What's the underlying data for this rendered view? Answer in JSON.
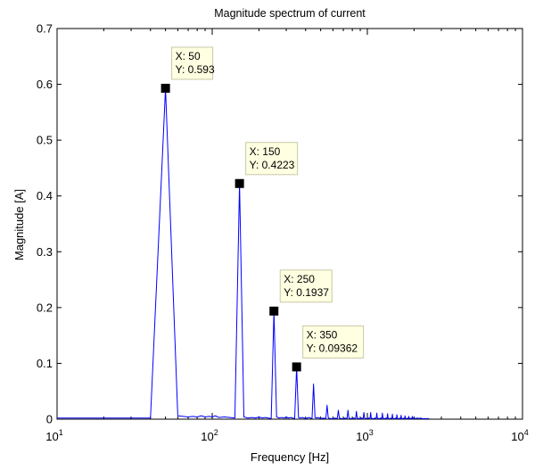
{
  "chart_data": {
    "type": "line",
    "title": "Magnitude spectrum of current",
    "xlabel": "Frequency [Hz]",
    "ylabel": "Magnitude [A]",
    "xscale": "log",
    "xlim": [
      10,
      10000
    ],
    "ylim": [
      0,
      0.7
    ],
    "grid": false,
    "line_color": "#0000ff",
    "x_ticks": [
      {
        "base": "10",
        "exp": "1"
      },
      {
        "base": "10",
        "exp": "2"
      },
      {
        "base": "10",
        "exp": "3"
      },
      {
        "base": "10",
        "exp": "4"
      }
    ],
    "y_ticks": [
      "0",
      "0.1",
      "0.2",
      "0.3",
      "0.4",
      "0.5",
      "0.6",
      "0.7"
    ],
    "series": [
      {
        "x": [
          10,
          40,
          50,
          60,
          70,
          75,
          80,
          85,
          90,
          95,
          100,
          105,
          110,
          120,
          130,
          140,
          150,
          160,
          170,
          180,
          190,
          200,
          210,
          220,
          230,
          240,
          250,
          260,
          270,
          280,
          290,
          300,
          310,
          320,
          330,
          340,
          350,
          360,
          370,
          380,
          390,
          400,
          410,
          420,
          430,
          440,
          450,
          460,
          470,
          480,
          490,
          500,
          520,
          540,
          550,
          560,
          580,
          600,
          620,
          640,
          650,
          660,
          680,
          700,
          720,
          740,
          750,
          760,
          780,
          800,
          820,
          840,
          850,
          860,
          880,
          900,
          920,
          940,
          950,
          960,
          980,
          1000,
          1020,
          1040,
          1050,
          1060,
          1080,
          1100,
          1120,
          1140,
          1150,
          1160,
          1180,
          1200,
          1220,
          1240,
          1250,
          1260,
          1280,
          1300,
          1320,
          1340,
          1350,
          1360,
          1380,
          1400,
          1420,
          1440,
          1450,
          1460,
          1480,
          1500,
          1520,
          1540,
          1550,
          1560,
          1580,
          1600,
          1620,
          1640,
          1650,
          1660,
          1680,
          1700,
          1720,
          1740,
          1750,
          1760,
          1780,
          1800,
          1820,
          1840,
          1850,
          1860,
          1880,
          1900,
          1920,
          1940,
          1950,
          1960,
          1980,
          2000,
          2050,
          2100,
          2150,
          2200,
          2250,
          2300,
          2350,
          2400,
          2450,
          2500
        ],
        "y": [
          0.002,
          0.002,
          0.593,
          0.006,
          0.004,
          0.005,
          0.004,
          0.006,
          0.004,
          0.005,
          0.004,
          0.006,
          0.003,
          0.004,
          0.003,
          0.002,
          0.4223,
          0.004,
          0.002,
          0.003,
          0.002,
          0.004,
          0.002,
          0.003,
          0.002,
          0.001,
          0.1937,
          0.004,
          0.002,
          0.003,
          0.002,
          0.004,
          0.002,
          0.003,
          0.002,
          0.001,
          0.09362,
          0.003,
          0.002,
          0.003,
          0.002,
          0.001,
          0.002,
          0.003,
          0.002,
          0.001,
          0.063,
          0.003,
          0.002,
          0.003,
          0.002,
          0.001,
          0.002,
          0.001,
          0.025,
          0.002,
          0.001,
          0.001,
          0.002,
          0.001,
          0.016,
          0.002,
          0.001,
          0.001,
          0.002,
          0.001,
          0.016,
          0.002,
          0.001,
          0.001,
          0.002,
          0.001,
          0.014,
          0.002,
          0.001,
          0.001,
          0.002,
          0.001,
          0.012,
          0.002,
          0.001,
          0.001,
          0.002,
          0.001,
          0.012,
          0.002,
          0.001,
          0.001,
          0.002,
          0.001,
          0.011,
          0.002,
          0.001,
          0.001,
          0.002,
          0.001,
          0.011,
          0.002,
          0.001,
          0.001,
          0.002,
          0.001,
          0.01,
          0.002,
          0.001,
          0.001,
          0.002,
          0.001,
          0.009,
          0.002,
          0.001,
          0.001,
          0.002,
          0.001,
          0.008,
          0.002,
          0.001,
          0.001,
          0.002,
          0.001,
          0.007,
          0.002,
          0.001,
          0.001,
          0.002,
          0.001,
          0.006,
          0.002,
          0.001,
          0.001,
          0.002,
          0.001,
          0.005,
          0.002,
          0.001,
          0.001,
          0.002,
          0.001,
          0.005,
          0.002,
          0.001,
          0.002,
          0.001,
          0.002,
          0.001,
          0.002,
          0.001,
          0.001,
          0.001,
          0.001,
          0.001,
          0.001
        ]
      }
    ],
    "datatips": [
      {
        "x": 50,
        "y": 0.593,
        "x_label": "X: 50",
        "y_label": "Y: 0.593"
      },
      {
        "x": 150,
        "y": 0.4223,
        "x_label": "X: 150",
        "y_label": "Y: 0.4223"
      },
      {
        "x": 250,
        "y": 0.1937,
        "x_label": "X: 250",
        "y_label": "Y: 0.1937"
      },
      {
        "x": 350,
        "y": 0.09362,
        "x_label": "X: 350",
        "y_label": "Y: 0.09362"
      }
    ]
  }
}
